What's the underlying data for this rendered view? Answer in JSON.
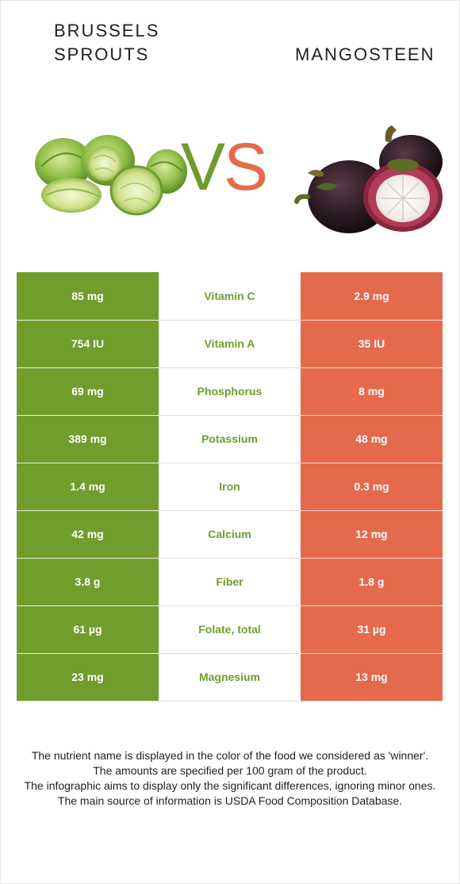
{
  "foods": {
    "left": {
      "name": "BRUSSELS SPROUTS",
      "color": "#709d2c"
    },
    "right": {
      "name": "MANGOSTEEN",
      "color": "#e5694c"
    }
  },
  "vs": {
    "v": "V",
    "s": "S"
  },
  "nutrients": [
    {
      "name": "Vitamin C",
      "left": "85 mg",
      "right": "2.9 mg",
      "winner": "left"
    },
    {
      "name": "Vitamin A",
      "left": "754 IU",
      "right": "35 IU",
      "winner": "left"
    },
    {
      "name": "Phosphorus",
      "left": "69 mg",
      "right": "8 mg",
      "winner": "left"
    },
    {
      "name": "Potassium",
      "left": "389 mg",
      "right": "48 mg",
      "winner": "left"
    },
    {
      "name": "Iron",
      "left": "1.4 mg",
      "right": "0.3 mg",
      "winner": "left"
    },
    {
      "name": "Calcium",
      "left": "42 mg",
      "right": "12 mg",
      "winner": "left"
    },
    {
      "name": "Fiber",
      "left": "3.8 g",
      "right": "1.8 g",
      "winner": "left"
    },
    {
      "name": "Folate, total",
      "left": "61 µg",
      "right": "31 µg",
      "winner": "left"
    },
    {
      "name": "Magnesium",
      "left": "23 mg",
      "right": "13 mg",
      "winner": "left"
    }
  ],
  "footer": [
    "The nutrient name is displayed in the color of the food we considered as 'winner'.",
    "The amounts are specified per 100 gram of the product.",
    "The infographic aims to display only the significant differences, ignoring minor ones.",
    "The main source of information is USDA Food Composition Database."
  ]
}
